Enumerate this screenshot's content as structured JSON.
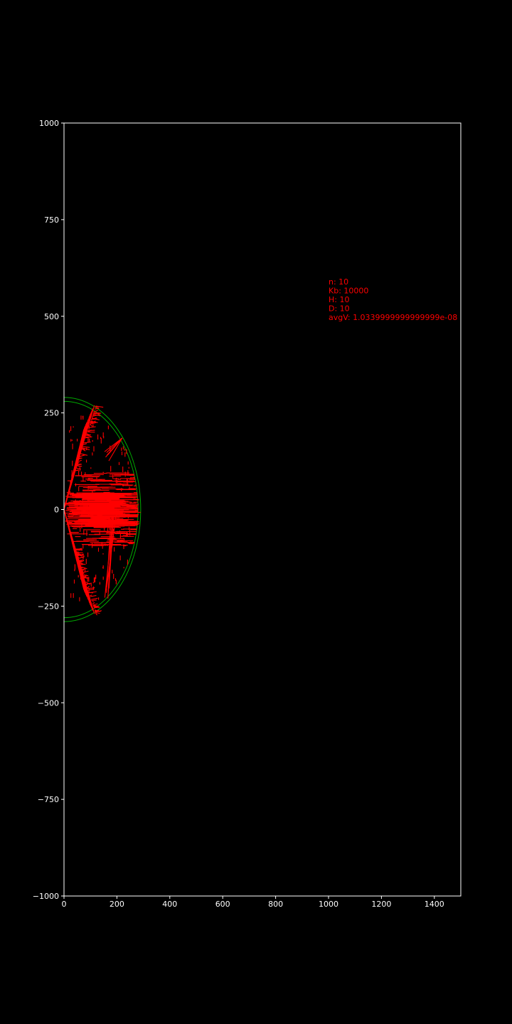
{
  "chart_data": {
    "type": "line",
    "title": "",
    "xlabel": "",
    "ylabel": "",
    "xlim": [
      0,
      1500
    ],
    "ylim": [
      -1000,
      1000
    ],
    "x_ticks": [
      0,
      200,
      400,
      600,
      800,
      1000,
      1200,
      1400
    ],
    "y_ticks": [
      1000,
      750,
      500,
      250,
      0,
      -250,
      -500,
      -750,
      -1000
    ],
    "x_tick_labels": [
      "0",
      "200",
      "400",
      "600",
      "800",
      "1000",
      "1200",
      "1400"
    ],
    "y_tick_labels": [
      "1000",
      "750",
      "500",
      "250",
      "0",
      "−250",
      "−500",
      "−750",
      "−1000"
    ],
    "grid": false,
    "background_color": "#000000",
    "axes_color": "#ffffff",
    "circles": [
      {
        "center": [
          0,
          0
        ],
        "radius": 290,
        "color": "#00aa00"
      },
      {
        "center": [
          0,
          0
        ],
        "radius": 280,
        "color": "#00aa00"
      }
    ],
    "series": [
      {
        "color": "#ff0000",
        "description_points": [
          [
            0,
            0
          ],
          [
            110,
            270
          ],
          [
            150,
            250
          ],
          [
            220,
            180
          ],
          [
            280,
            90
          ],
          [
            290,
            0
          ],
          [
            280,
            -90
          ],
          [
            150,
            -250
          ],
          [
            100,
            -270
          ],
          [
            0,
            0
          ]
        ]
      }
    ],
    "annotations": [
      {
        "text": "n: 10",
        "x": 1000,
        "y": 590,
        "color": "#ff0000"
      },
      {
        "text": "Kb: 10000",
        "x": 1000,
        "y": 567,
        "color": "#ff0000"
      },
      {
        "text": "H: 10",
        "x": 1000,
        "y": 544,
        "color": "#ff0000"
      },
      {
        "text": "D: 10",
        "x": 1000,
        "y": 521,
        "color": "#ff0000"
      },
      {
        "text": "avgV: 1.0339999999999999e-08",
        "x": 1000,
        "y": 498,
        "color": "#ff0000"
      }
    ]
  }
}
